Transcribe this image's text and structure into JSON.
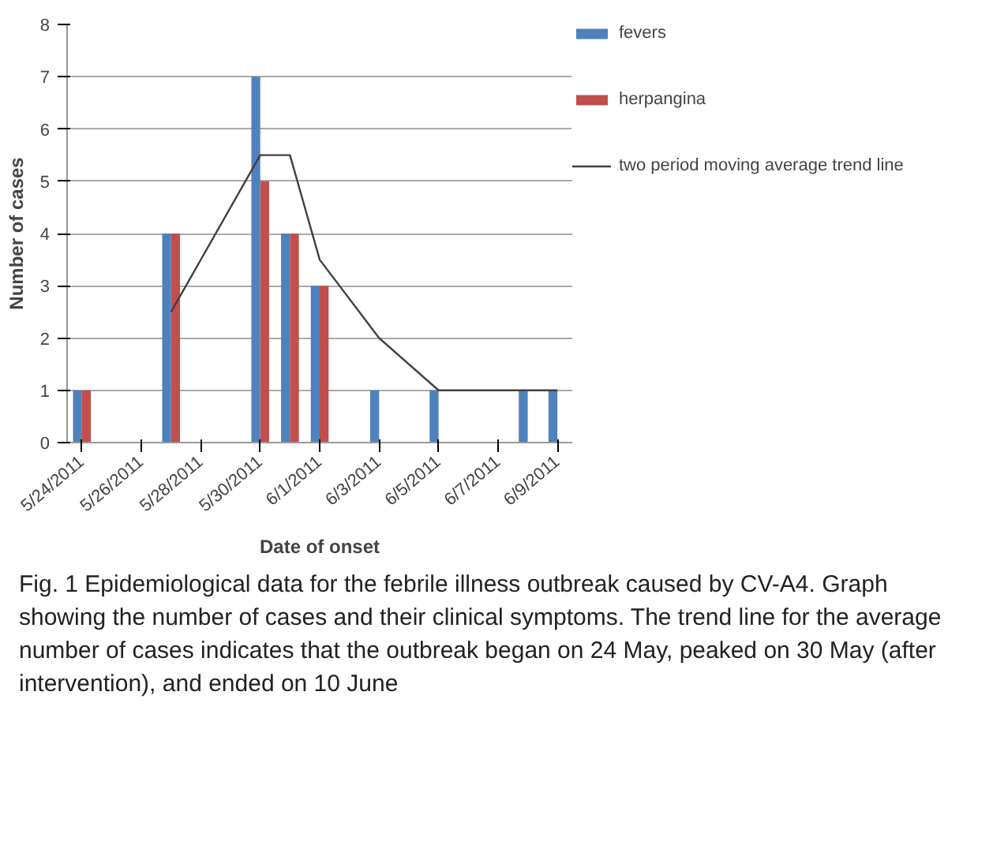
{
  "chart_data": {
    "type": "bar",
    "xlabel": "Date of onset",
    "ylabel": "Number of cases",
    "x": [
      "2011-05-24",
      "2011-05-27",
      "2011-05-30",
      "2011-05-31",
      "2011-06-01",
      "2011-06-03",
      "2011-06-05",
      "2011-06-08",
      "2011-06-09"
    ],
    "series": [
      {
        "name": "fevers",
        "color": "#4f81bd",
        "values": [
          1,
          4,
          7,
          4,
          3,
          1,
          1,
          1,
          1
        ]
      },
      {
        "name": "herpangina",
        "color": "#c0504d",
        "values": [
          1,
          4,
          5,
          4,
          3,
          null,
          null,
          null,
          null
        ]
      },
      {
        "name": "two period moving average trend line",
        "type": "line",
        "color": "#404040",
        "x": [
          "2011-05-27",
          "2011-05-30",
          "2011-05-31",
          "2011-06-01",
          "2011-06-03",
          "2011-06-05",
          "2011-06-08",
          "2011-06-09"
        ],
        "values": [
          2.5,
          5.5,
          5.5,
          3.5,
          2,
          1,
          1,
          1
        ]
      }
    ],
    "xlim": [
      "2011-05-23T12:00",
      "2011-06-09T12:00"
    ],
    "xticks": [
      {
        "value": "2011-05-24",
        "label": "5/24/2011"
      },
      {
        "value": "2011-05-26",
        "label": "5/26/2011"
      },
      {
        "value": "2011-05-28",
        "label": "5/28/2011"
      },
      {
        "value": "2011-05-30",
        "label": "5/30/2011"
      },
      {
        "value": "2011-06-01",
        "label": "6/1/2011"
      },
      {
        "value": "2011-06-03",
        "label": "6/3/2011"
      },
      {
        "value": "2011-06-05",
        "label": "6/5/2011"
      },
      {
        "value": "2011-06-07",
        "label": "6/7/2011"
      },
      {
        "value": "2011-06-09",
        "label": "6/9/2011"
      }
    ],
    "ylim": [
      0,
      8
    ],
    "yticks": [
      0,
      1,
      2,
      3,
      4,
      5,
      6,
      7,
      8
    ],
    "grid": "y",
    "legend": "right",
    "annotations": [
      "Fig. 1 Epidemiological data for the febrile illness outbreak caused by CV-A4. Graph showing the number of cases and their clinical symptoms. The trend line for the average number of cases indicates that the outbreak began on 24 May, peaked on 30 May (after intervention), and ended on 10 June"
    ]
  }
}
